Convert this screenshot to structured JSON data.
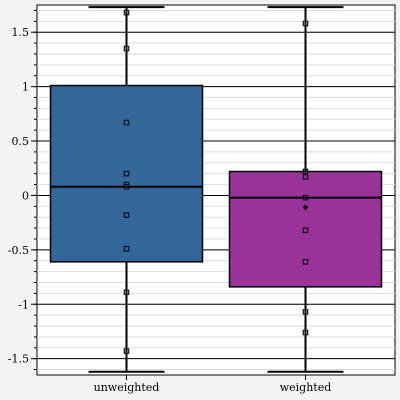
{
  "chart_data": {
    "type": "box",
    "title": "",
    "xlabel": "",
    "ylabel": "",
    "ylim": [
      -1.65,
      1.75
    ],
    "yticks": [
      -1.5,
      -1,
      -0.5,
      0,
      0.5,
      1,
      1.5
    ],
    "ytick_labels": [
      "-1.5",
      "-1",
      "-0.5",
      "0",
      "0.5",
      "1",
      "1.5"
    ],
    "minor_tick_step": 0.1,
    "grid": "horizontal",
    "legend": "none",
    "categories": [
      "unweighted",
      "weighted"
    ],
    "boxes": [
      {
        "category": "unweighted",
        "color": "#336699",
        "q1": -0.61,
        "median": 0.08,
        "q3": 1.01,
        "whisker_low": -1.62,
        "whisker_high": 1.73,
        "points": [
          1.68,
          1.35,
          0.67,
          0.2,
          0.1,
          0.08,
          -0.18,
          -0.49,
          -0.89,
          -1.43
        ]
      },
      {
        "category": "weighted",
        "color": "#993399",
        "q1": -0.84,
        "median": -0.02,
        "q3": 0.22,
        "whisker_low": -1.62,
        "whisker_high": 1.73,
        "mean": -0.11,
        "points": [
          1.58,
          0.22,
          0.17,
          -0.02,
          -0.32,
          -0.61,
          -1.07,
          -1.26
        ]
      }
    ]
  }
}
